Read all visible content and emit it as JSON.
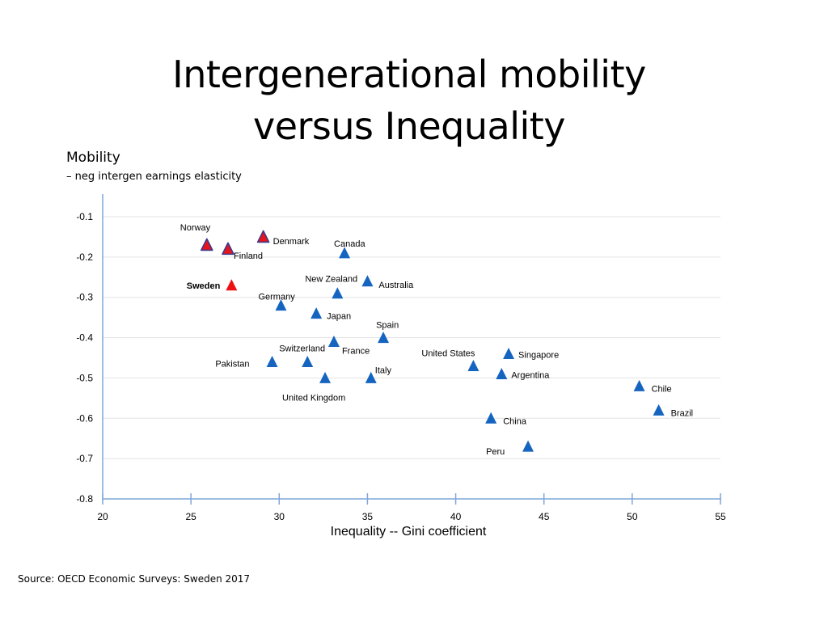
{
  "slide": {
    "title_line1": "Intergenerational mobility",
    "title_line2": "versus Inequality",
    "source": "Source: OECD Economic Surveys: Sweden 2017"
  },
  "chart_data": {
    "type": "scatter",
    "title": "Intergenerational mobility versus Inequality",
    "ylabel": "Mobility",
    "ylabel_sub": "– neg intergen earnings elasticity",
    "xlabel": "Inequality -- Gini coefficient",
    "xlim": [
      20,
      55
    ],
    "ylim": [
      -0.8,
      -0.1
    ],
    "xticks": [
      20,
      25,
      30,
      35,
      40,
      45,
      50,
      55
    ],
    "yticks": [
      -0.1,
      -0.2,
      -0.3,
      -0.4,
      -0.5,
      -0.6,
      -0.7,
      -0.8
    ],
    "grid": "horizontal",
    "marker": "triangle",
    "colors": {
      "default": "#1565C0",
      "nordic": "#E8141B",
      "nordic_outline": "#3A3A8C",
      "sweden": "#EE1111",
      "axis": "#7FA7D8",
      "grid": "#E3E3E3"
    },
    "points": [
      {
        "label": "Norway",
        "x": 25.9,
        "y": -0.17,
        "style": "nordic"
      },
      {
        "label": "Denmark",
        "x": 29.1,
        "y": -0.15,
        "style": "nordic"
      },
      {
        "label": "Finland",
        "x": 27.1,
        "y": -0.18,
        "style": "nordic"
      },
      {
        "label": "Sweden",
        "x": 27.3,
        "y": -0.27,
        "style": "sweden"
      },
      {
        "label": "Canada",
        "x": 33.7,
        "y": -0.19,
        "style": "default"
      },
      {
        "label": "New Zealand",
        "x": 33.3,
        "y": -0.29,
        "style": "default"
      },
      {
        "label": "Australia",
        "x": 35.0,
        "y": -0.26,
        "style": "default"
      },
      {
        "label": "Germany",
        "x": 30.1,
        "y": -0.32,
        "style": "default"
      },
      {
        "label": "Japan",
        "x": 32.1,
        "y": -0.34,
        "style": "default"
      },
      {
        "label": "Spain",
        "x": 35.9,
        "y": -0.4,
        "style": "default"
      },
      {
        "label": "France",
        "x": 33.1,
        "y": -0.41,
        "style": "default"
      },
      {
        "label": "Switzerland",
        "x": 31.6,
        "y": -0.46,
        "style": "default"
      },
      {
        "label": "Pakistan",
        "x": 29.6,
        "y": -0.46,
        "style": "default"
      },
      {
        "label": "Italy",
        "x": 35.2,
        "y": -0.5,
        "style": "default"
      },
      {
        "label": "United Kingdom",
        "x": 32.6,
        "y": -0.5,
        "style": "default"
      },
      {
        "label": "United States",
        "x": 41.0,
        "y": -0.47,
        "style": "default"
      },
      {
        "label": "Singapore",
        "x": 43.0,
        "y": -0.44,
        "style": "default"
      },
      {
        "label": "Argentina",
        "x": 42.6,
        "y": -0.49,
        "style": "default"
      },
      {
        "label": "Chile",
        "x": 50.4,
        "y": -0.52,
        "style": "default"
      },
      {
        "label": "Brazil",
        "x": 51.5,
        "y": -0.58,
        "style": "default"
      },
      {
        "label": "China",
        "x": 42.0,
        "y": -0.6,
        "style": "default"
      },
      {
        "label": "Peru",
        "x": 44.1,
        "y": -0.67,
        "style": "default"
      }
    ]
  }
}
